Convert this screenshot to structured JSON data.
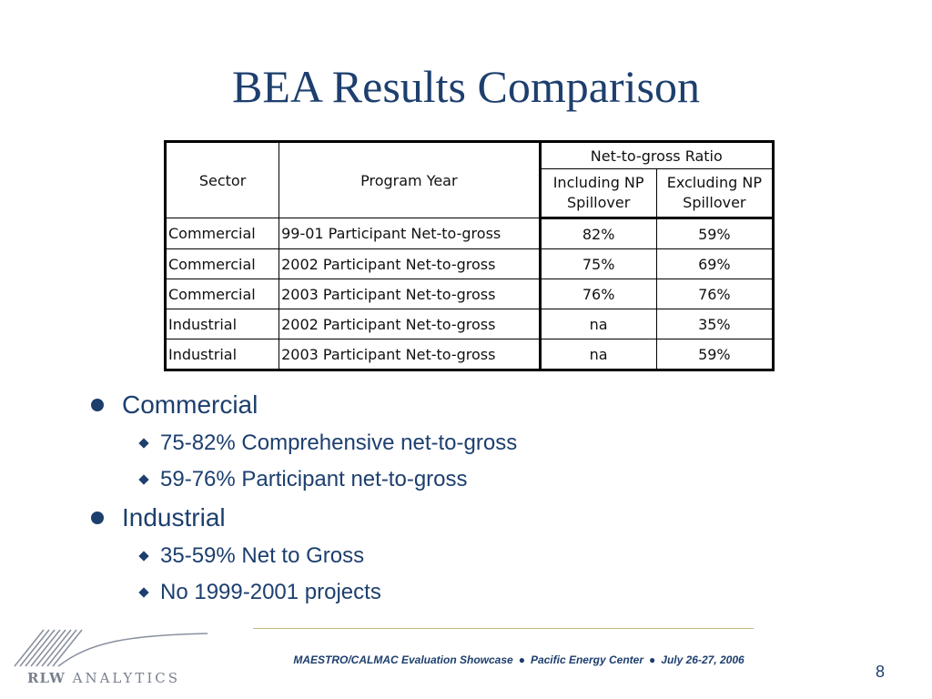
{
  "slide": {
    "title": "BEA Results Comparison",
    "page_number": "8"
  },
  "table": {
    "headers": {
      "sector": "Sector",
      "program_year": "Program Year",
      "group": "Net-to-gross Ratio",
      "including": "Including NP Spillover",
      "excluding": "Excluding NP Spillover"
    },
    "rows": [
      {
        "sector": "Commercial",
        "program_year": "99-01 Participant Net-to-gross",
        "including": "82%",
        "excluding": "59%"
      },
      {
        "sector": "Commercial",
        "program_year": "2002 Participant Net-to-gross",
        "including": "75%",
        "excluding": "69%"
      },
      {
        "sector": "Commercial",
        "program_year": "2003 Participant Net-to-gross",
        "including": "76%",
        "excluding": "76%"
      },
      {
        "sector": "Industrial",
        "program_year": "2002 Participant Net-to-gross",
        "including": "na",
        "excluding": "35%"
      },
      {
        "sector": "Industrial",
        "program_year": "2003 Participant Net-to-gross",
        "including": "na",
        "excluding": "59%"
      }
    ]
  },
  "bullets": [
    {
      "label": "Commercial",
      "items": [
        "75-82% Comprehensive net-to-gross",
        "59-76% Participant net-to-gross"
      ]
    },
    {
      "label": "Industrial",
      "items": [
        "35-59% Net to Gross",
        "No 1999-2001 projects"
      ]
    }
  ],
  "footer": {
    "event": "MAESTRO/CALMAC Evaluation Showcase",
    "venue": "Pacific Energy Center",
    "date": "July 26-27, 2006",
    "separator": "●"
  },
  "logo": {
    "brand_bold": "RLW",
    "brand_rest": "ANALYTICS",
    "icon": "rlw-analytics-logo-icon",
    "color": "#7a8090"
  },
  "colors": {
    "title": "#1d3f6e",
    "rule": "#c9b48a"
  }
}
